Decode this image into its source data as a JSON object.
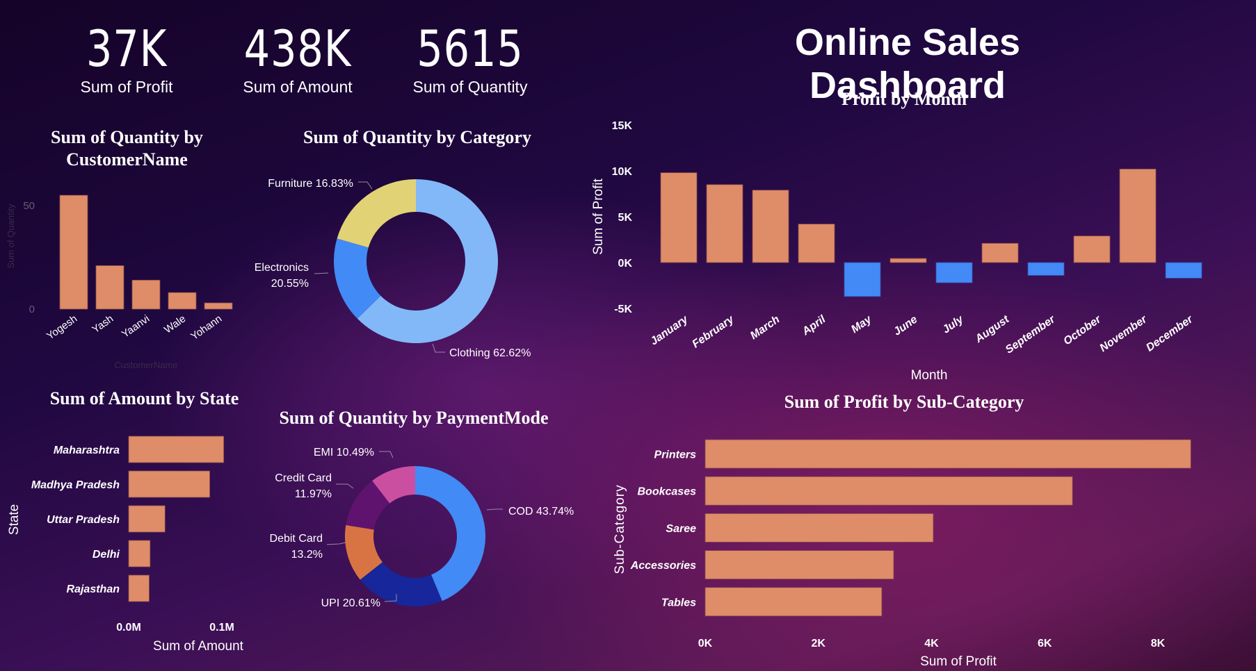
{
  "header": {
    "title": "Online Sales Dashboard"
  },
  "kpis": [
    {
      "value": "37K",
      "label": "Sum of Profit"
    },
    {
      "value": "438K",
      "label": "Sum of Amount"
    },
    {
      "value": "5615",
      "label": "Sum of Quantity"
    }
  ],
  "colors": {
    "bar": "#DE8D68",
    "negative": "#438AF6",
    "category": {
      "Clothing": "#82B8F7",
      "Electronics": "#E1D275",
      "Furniture": "#428AF5"
    },
    "payment": {
      "COD": "#428AF5",
      "UPI": "#17269A",
      "Debit Card": "#D87443",
      "Credit Card": "#5F136F",
      "EMI": "#CB4FA0"
    }
  },
  "chart_data": [
    {
      "id": "customer",
      "type": "bar",
      "title": "Sum of Quantity by CustomerName",
      "categories": [
        "Yogesh",
        "Yash",
        "Yaanvi",
        "Wale",
        "Yohann"
      ],
      "values": [
        55,
        21,
        14,
        8,
        3
      ],
      "xlabel": "CustomerName",
      "ylabel": "Sum of Quantity",
      "yticks": [
        "0",
        "50"
      ],
      "ylim": [
        0,
        60
      ]
    },
    {
      "id": "category",
      "type": "pie",
      "title": "Sum of Quantity by Category",
      "categories": [
        "Clothing",
        "Furniture",
        "Electronics"
      ],
      "values": [
        62.62,
        16.83,
        20.55
      ],
      "labels": [
        "Clothing 62.62%",
        "Furniture 16.83%",
        "Electronics 20.55%"
      ]
    },
    {
      "id": "month",
      "type": "bar",
      "title": "Profit by Month",
      "categories": [
        "January",
        "February",
        "March",
        "April",
        "May",
        "June",
        "July",
        "August",
        "September",
        "October",
        "November",
        "December"
      ],
      "values": [
        9.8,
        8.5,
        7.9,
        4.2,
        -3.7,
        0.45,
        -2.2,
        2.1,
        -1.4,
        2.9,
        10.2,
        -1.7
      ],
      "units": "K",
      "xlabel": "Month",
      "ylabel": "Sum of Profit",
      "yticks": [
        "15K",
        "10K",
        "5K",
        "0K",
        "-5K"
      ],
      "ylim": [
        -5,
        15
      ]
    },
    {
      "id": "state",
      "type": "bar",
      "orientation": "horizontal",
      "title": "Sum of Amount by State",
      "categories": [
        "Maharashtra",
        "Madhya Pradesh",
        "Uttar Pradesh",
        "Delhi",
        "Rajasthan"
      ],
      "values": [
        0.102,
        0.087,
        0.039,
        0.023,
        0.022
      ],
      "units": "M",
      "xlabel": "Sum of Amount",
      "ylabel": "State",
      "xticks": [
        "0.0M",
        "0.1M"
      ],
      "xlim": [
        0,
        0.1
      ]
    },
    {
      "id": "payment",
      "type": "pie",
      "title": "Sum of Quantity by PaymentMode",
      "categories": [
        "COD",
        "UPI",
        "Debit Card",
        "Credit Card",
        "EMI"
      ],
      "values": [
        43.74,
        20.61,
        13.2,
        11.97,
        10.49
      ],
      "labels": [
        "COD 43.74%",
        "UPI 20.61%",
        "Debit Card 13.2%",
        "Credit Card 11.97%",
        "EMI 10.49%"
      ]
    },
    {
      "id": "subcat",
      "type": "bar",
      "orientation": "horizontal",
      "title": "Sum of Profit by Sub-Category",
      "categories": [
        "Printers",
        "Bookcases",
        "Saree",
        "Accessories",
        "Tables"
      ],
      "values": [
        8.58,
        6.49,
        4.03,
        3.33,
        3.12
      ],
      "units": "K",
      "xlabel": "Sum of Profit",
      "ylabel": "Sub-Category",
      "xticks": [
        "0K",
        "2K",
        "4K",
        "6K",
        "8K"
      ],
      "xlim": [
        0,
        8
      ]
    }
  ]
}
